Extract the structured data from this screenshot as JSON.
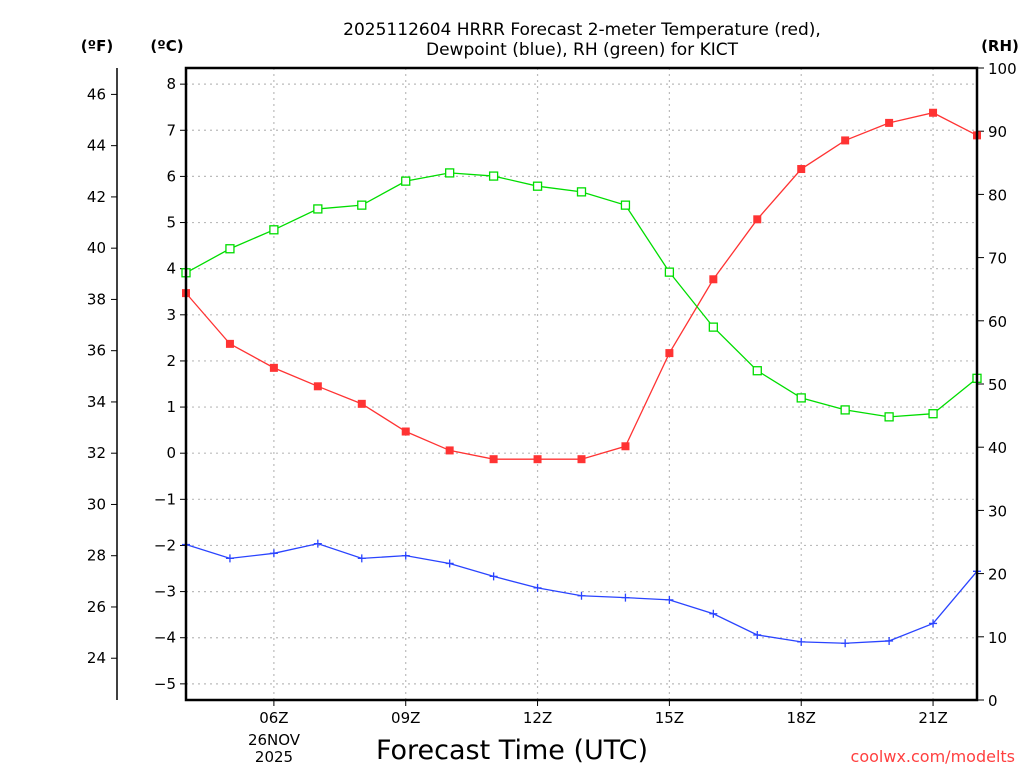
{
  "chart_data": {
    "type": "line",
    "title_lines": [
      "2025112604 HRRR Forecast 2-meter Temperature (red),",
      "Dewpoint (blue), RH (green) for KICT"
    ],
    "xlabel": "Forecast Time (UTC)",
    "date_label": [
      "26NOV",
      "2025"
    ],
    "credit": "coolwx.com/modelts",
    "units": {
      "fahrenheit": "(ºF)",
      "celsius": "(ºC)",
      "rh": "(RH)"
    },
    "x_hours": [
      4,
      5,
      6,
      7,
      8,
      9,
      10,
      11,
      12,
      13,
      14,
      15,
      16,
      17,
      18,
      19,
      20,
      21,
      22
    ],
    "xlim": [
      4,
      22
    ],
    "x_ticks": [
      {
        "h": 6,
        "label": "06Z"
      },
      {
        "h": 9,
        "label": "09Z"
      },
      {
        "h": 12,
        "label": "12Z"
      },
      {
        "h": 15,
        "label": "15Z"
      },
      {
        "h": 18,
        "label": "18Z"
      },
      {
        "h": 21,
        "label": "21Z"
      }
    ],
    "celsius_ylim": [
      -5.35,
      8.35
    ],
    "celsius_ticks": [
      "8",
      "7",
      "6",
      "5",
      "4",
      "3",
      "2",
      "1",
      "0",
      "−1",
      "−2",
      "−3",
      "−4",
      "−5"
    ],
    "fahrenheit_ticks": [
      "46",
      "44",
      "42",
      "40",
      "38",
      "36",
      "34",
      "32",
      "30",
      "28",
      "26",
      "24"
    ],
    "rh_ylim": [
      0,
      100
    ],
    "rh_ticks": [
      "100",
      "90",
      "80",
      "70",
      "60",
      "50",
      "40",
      "30",
      "20",
      "10",
      "0"
    ],
    "grid": true,
    "series": [
      {
        "name": "Temperature",
        "axis": "celsius",
        "color": "#ff3333",
        "marker": "filled-square",
        "values": [
          3.47,
          2.37,
          1.85,
          1.45,
          1.07,
          0.47,
          0.06,
          -0.13,
          -0.13,
          -0.13,
          0.15,
          2.17,
          3.77,
          5.07,
          6.16,
          6.78,
          7.16,
          7.38,
          6.89
        ]
      },
      {
        "name": "Dewpoint",
        "axis": "celsius",
        "color": "#2a44ff",
        "marker": "plus",
        "values": [
          -1.98,
          -2.28,
          -2.17,
          -1.96,
          -2.28,
          -2.22,
          -2.39,
          -2.67,
          -2.92,
          -3.09,
          -3.13,
          -3.18,
          -3.48,
          -3.94,
          -4.09,
          -4.12,
          -4.07,
          -3.69,
          -2.56
        ]
      },
      {
        "name": "RH",
        "axis": "rh",
        "color": "#00dd00",
        "marker": "open-square",
        "values": [
          67.6,
          71.4,
          74.4,
          77.7,
          78.3,
          82.1,
          83.4,
          82.9,
          81.3,
          80.4,
          78.3,
          67.7,
          59.0,
          52.1,
          47.8,
          45.9,
          44.8,
          45.3,
          50.9
        ]
      }
    ]
  }
}
